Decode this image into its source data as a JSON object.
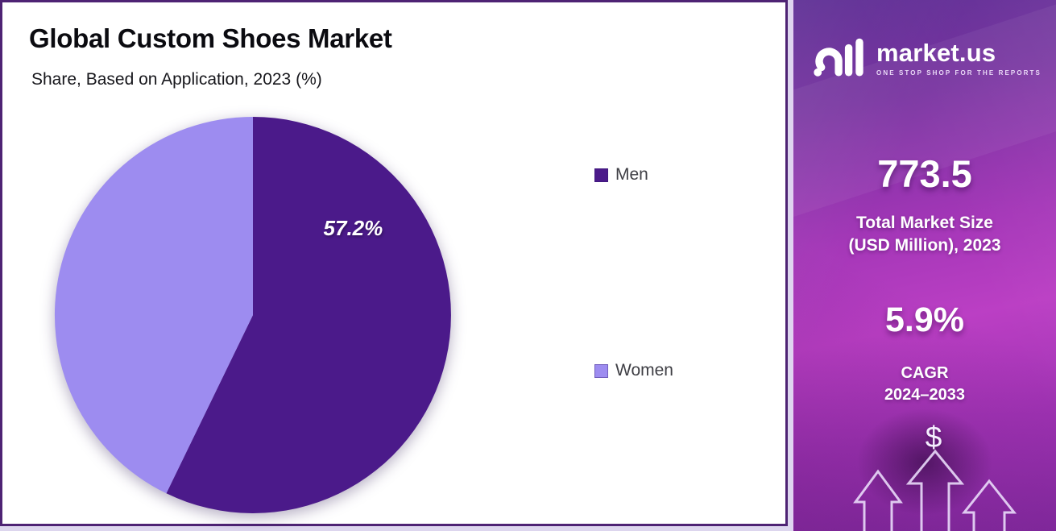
{
  "chart_data": {
    "type": "pie",
    "title": "Global Custom Shoes Market",
    "subtitle": "Share, Based on Application, 2023 (%)",
    "unit": "%",
    "year": "2023",
    "legend_position": "right",
    "start_angle_deg": 0,
    "direction": "clockwise",
    "slices": [
      {
        "label": "Men",
        "value": 57.2,
        "color": "#4b1a8a",
        "data_label": "57.2%"
      },
      {
        "label": "Women",
        "value": 42.8,
        "color": "#9d8cf0",
        "data_label": ""
      }
    ],
    "data_label_color": "#ffffff",
    "label_layout": {
      "angle_deg": 49,
      "radius_frac": 0.67
    }
  },
  "sidebar": {
    "brand": "market.us",
    "tagline": "ONE STOP SHOP FOR THE REPORTS",
    "stat1_value": "773.5",
    "stat1_label_line1": "Total Market Size",
    "stat1_label_line2": "(USD Million), 2023",
    "stat2_value": "5.9%",
    "stat2_label_line1": "CAGR",
    "stat2_label_line2": "2024–2033",
    "dollar_symbol": "$"
  },
  "colors": {
    "men_slice": "#4b1a8a",
    "women_slice": "#9d8cf0",
    "card_border": "#4e2374",
    "sidebar_magenta": "#bb3fc4",
    "sidebar_purple": "#5a2a92"
  }
}
